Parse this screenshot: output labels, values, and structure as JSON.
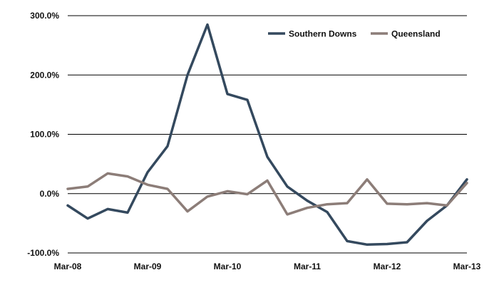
{
  "chart_data": {
    "type": "line",
    "x": [
      "Mar-08",
      "Jun-08",
      "Sep-08",
      "Dec-08",
      "Mar-09",
      "Jun-09",
      "Sep-09",
      "Dec-09",
      "Mar-10",
      "Jun-10",
      "Sep-10",
      "Dec-10",
      "Mar-11",
      "Jun-11",
      "Sep-11",
      "Dec-11",
      "Mar-12",
      "Jun-12",
      "Sep-12",
      "Dec-12",
      "Mar-13"
    ],
    "x_tick_labels": [
      "Mar-08",
      "Mar-09",
      "Mar-10",
      "Mar-11",
      "Mar-12",
      "Mar-13"
    ],
    "y_tick_labels": [
      "300.0%",
      "200.0%",
      "100.0%",
      "0.0%",
      "-100.0%"
    ],
    "ylim": [
      -100,
      300
    ],
    "y_unit": "%",
    "grid": "horizontal",
    "legend_position": "top-right",
    "series": [
      {
        "name": "Southern Downs",
        "color": "#34495e",
        "values": [
          -20,
          -42,
          -26,
          -32,
          36,
          80,
          200,
          285,
          168,
          158,
          62,
          12,
          -12,
          -31,
          -80,
          -86,
          -85,
          -82,
          -46,
          -20,
          24
        ]
      },
      {
        "name": "Queensland",
        "color": "#8c7d78",
        "values": [
          8,
          12,
          34,
          29,
          15,
          8,
          -30,
          -5,
          4,
          -1,
          22,
          -35,
          -24,
          -18,
          -16,
          24,
          -17,
          -18,
          -16,
          -20,
          18
        ]
      }
    ]
  }
}
